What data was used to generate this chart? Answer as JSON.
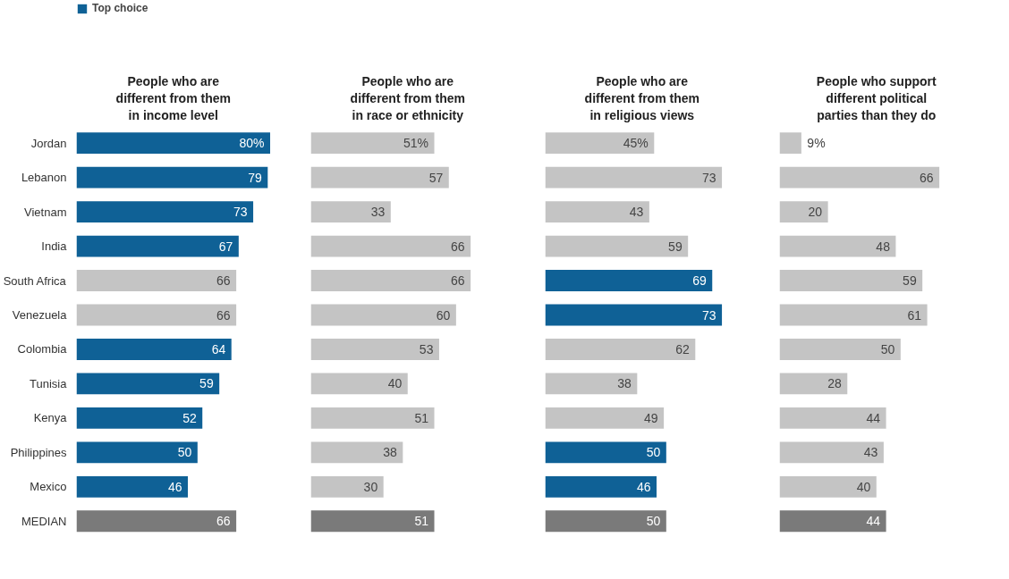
{
  "chart_data": [
    {
      "type": "bar",
      "orientation": "horizontal",
      "title": "People who are different from them in income level",
      "categories": [
        "Jordan",
        "Lebanon",
        "Vietnam",
        "India",
        "South Africa",
        "Venezuela",
        "Colombia",
        "Tunisia",
        "Kenya",
        "Philippines",
        "Mexico",
        "MEDIAN"
      ],
      "legend": "top left",
      "tick_labels": "y",
      "series": [
        {
          "name": "Top choice",
          "color": "#0f6196",
          "values": [
            80,
            79,
            73,
            67,
            66,
            66,
            64,
            59,
            52,
            50,
            46,
            66
          ],
          "value_labels": [
            "80%",
            "79",
            "73",
            "67",
            "66",
            "66",
            "64",
            "59",
            "52",
            "50",
            "46",
            "66"
          ],
          "colors": [
            null,
            null,
            null,
            null,
            "#c4c4c4",
            "#c4c4c4",
            null,
            null,
            null,
            null,
            null,
            "#7a7a7a"
          ]
        }
      ]
    },
    {
      "type": "bar",
      "orientation": "horizontal",
      "title": "People who are different from them in race or ethnicity",
      "categories": [
        null,
        null,
        null,
        null,
        null,
        null,
        null,
        null,
        null,
        null,
        null,
        null
      ],
      "tick_labels": false,
      "series": [
        {
          "color": "#c4c4c4",
          "values": [
            51,
            57,
            33,
            66,
            66,
            60,
            53,
            40,
            51,
            38,
            30,
            51
          ],
          "value_labels": [
            "51%",
            "57",
            "33",
            "66",
            "66",
            "60",
            "53",
            "40",
            "51",
            "38",
            "30",
            "51"
          ],
          "colors": [
            null,
            null,
            null,
            null,
            null,
            null,
            null,
            null,
            null,
            null,
            null,
            "#7a7a7a"
          ]
        }
      ]
    },
    {
      "type": "bar",
      "orientation": "horizontal",
      "title": "People who are different from them in religious views",
      "categories": [
        null,
        null,
        null,
        null,
        null,
        null,
        null,
        null,
        null,
        null,
        null,
        null
      ],
      "tick_labels": false,
      "series": [
        {
          "color": "#c4c4c4",
          "values": [
            45,
            73,
            43,
            59,
            69,
            73,
            62,
            38,
            49,
            50,
            46,
            50
          ],
          "value_labels": [
            "45%",
            "73",
            "43",
            "59",
            "69",
            "73",
            "62",
            "38",
            "49",
            "50",
            "46",
            "50"
          ],
          "colors": [
            null,
            null,
            null,
            null,
            "#0f6196",
            "#0f6196",
            null,
            null,
            null,
            "#0f6196",
            "#0f6196",
            "#7a7a7a"
          ]
        }
      ]
    },
    {
      "type": "bar",
      "orientation": "horizontal",
      "title": "People who support different political parties than they do",
      "categories": [
        null,
        null,
        null,
        null,
        null,
        null,
        null,
        null,
        null,
        null,
        null,
        null
      ],
      "tick_labels": false,
      "series": [
        {
          "color": "#c4c4c4",
          "values": [
            9,
            66,
            20,
            48,
            59,
            61,
            50,
            28,
            44,
            43,
            40,
            44
          ],
          "value_labels": [
            "9%",
            "66",
            "20",
            "48",
            "59",
            "61",
            "50",
            "28",
            "44",
            "43",
            "40",
            "44"
          ],
          "colors": [
            null,
            null,
            null,
            null,
            null,
            null,
            null,
            null,
            null,
            null,
            null,
            "#7a7a7a"
          ]
        }
      ]
    }
  ]
}
